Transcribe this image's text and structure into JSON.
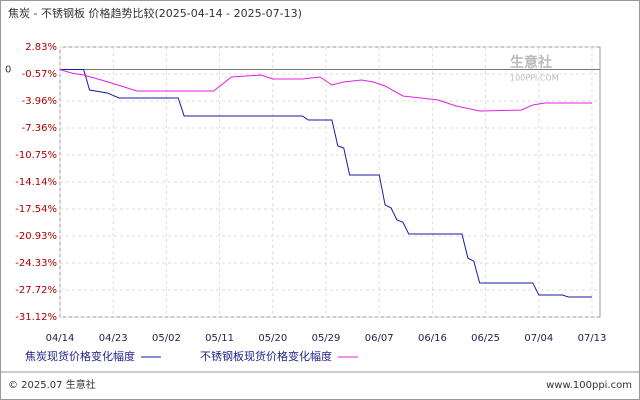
{
  "chart_data": {
    "type": "line",
    "title": "焦炭 - 不锈钢板 价格趋势比较(2025-04-14 - 2025-07-13)",
    "xlim": [
      "04/14",
      "07/13"
    ],
    "xticks": [
      "04/14",
      "04/23",
      "05/02",
      "05/11",
      "05/20",
      "05/29",
      "06/07",
      "06/16",
      "06/25",
      "07/04",
      "07/13"
    ],
    "ylim": [
      -31.12,
      2.83
    ],
    "yticks": [
      {
        "value": 2.83,
        "label": "2.83%"
      },
      {
        "value": -0.57,
        "label": "-0.57%"
      },
      {
        "value": -3.96,
        "label": "-3.96%"
      },
      {
        "value": -7.36,
        "label": "-7.36%"
      },
      {
        "value": -10.75,
        "label": "-10.75%"
      },
      {
        "value": -14.14,
        "label": "-14.14%"
      },
      {
        "value": -17.54,
        "label": "-17.54%"
      },
      {
        "value": -20.93,
        "label": "-20.93%"
      },
      {
        "value": -24.33,
        "label": "-24.33%"
      },
      {
        "value": -27.72,
        "label": "-27.72%"
      },
      {
        "value": -31.12,
        "label": "-31.12%"
      }
    ],
    "grid": true,
    "annotations": [
      {
        "text": "0",
        "y": 0
      }
    ],
    "series": [
      {
        "name": "焦炭现货价格变化幅度",
        "color": "#1a1aa6",
        "x": [
          "04/14",
          "04/18",
          "04/19",
          "04/22",
          "04/24",
          "05/04",
          "05/05",
          "05/25",
          "05/26",
          "05/30",
          "05/31",
          "06/01",
          "06/02",
          "06/07",
          "06/08",
          "06/09",
          "06/10",
          "06/11",
          "06/12",
          "06/21",
          "06/22",
          "06/23",
          "06/24",
          "07/03",
          "07/04",
          "07/08",
          "07/09",
          "07/13"
        ],
        "values": [
          0,
          0,
          -2.58,
          -2.95,
          -3.58,
          -3.58,
          -5.84,
          -5.84,
          -6.35,
          -6.35,
          -9.62,
          -9.87,
          -13.26,
          -13.26,
          -17.03,
          -17.4,
          -18.92,
          -19.2,
          -20.68,
          -20.68,
          -23.7,
          -24.1,
          -26.84,
          -26.84,
          -28.35,
          -28.35,
          -28.6,
          -28.6
        ]
      },
      {
        "name": "不锈钢板现货价格变化幅度",
        "color": "#e020e0",
        "x": [
          "04/14",
          "04/16",
          "04/18",
          "04/21",
          "04/24",
          "04/27",
          "05/10",
          "05/13",
          "05/18",
          "05/20",
          "05/25",
          "05/28",
          "05/30",
          "06/01",
          "06/04",
          "06/06",
          "06/08",
          "06/11",
          "06/17",
          "06/20",
          "06/24",
          "07/01",
          "07/03",
          "07/05",
          "07/13"
        ],
        "values": [
          0,
          -0.45,
          -0.69,
          -1.32,
          -2.0,
          -2.7,
          -2.7,
          -0.94,
          -0.69,
          -1.19,
          -1.19,
          -0.94,
          -1.95,
          -1.57,
          -1.32,
          -1.57,
          -2.07,
          -3.33,
          -3.83,
          -4.59,
          -5.22,
          -5.1,
          -4.46,
          -4.21,
          -4.21
        ]
      }
    ],
    "watermark": [
      "生意社",
      "100PPI.COM"
    ],
    "footer": [
      "© 2025.07 生意社",
      "www.100ppi.com"
    ]
  }
}
